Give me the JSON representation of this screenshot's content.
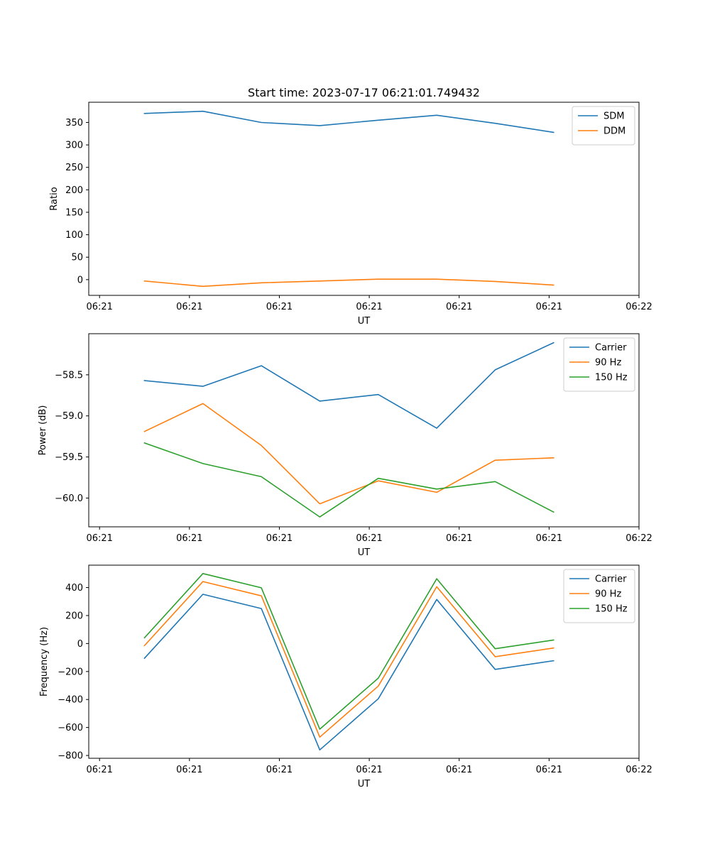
{
  "figure_title": "Start time: 2023-07-17 06:21:01.749432",
  "colors": {
    "blue": "#1f77b4",
    "orange": "#ff7f0e",
    "green": "#2ca02c"
  },
  "chart_data": [
    {
      "type": "line",
      "title": "Start time: 2023-07-17 06:21:01.749432",
      "xlabel": "UT",
      "ylabel": "Ratio",
      "x_tick_labels": [
        "06:21",
        "06:21",
        "06:21",
        "06:21",
        "06:21",
        "06:21",
        "06:22"
      ],
      "x_tick_values": [
        0,
        1,
        2,
        3,
        4,
        5,
        6
      ],
      "xlim": [
        -0.12,
        6.0
      ],
      "x": [
        0.5,
        1.15,
        1.8,
        2.45,
        3.1,
        3.75,
        4.4,
        5.05
      ],
      "ylim": [
        -35,
        395
      ],
      "y_ticks": [
        0,
        50,
        100,
        150,
        200,
        250,
        300,
        350
      ],
      "legend_position": "top-right",
      "series": [
        {
          "name": "SDM",
          "color": "#1f77b4",
          "values": [
            370,
            375,
            350,
            343,
            355,
            366,
            348,
            328
          ]
        },
        {
          "name": "DDM",
          "color": "#ff7f0e",
          "values": [
            -3,
            -15,
            -7,
            -3,
            1,
            1,
            -4,
            -12
          ]
        }
      ]
    },
    {
      "type": "line",
      "title": "",
      "xlabel": "UT",
      "ylabel": "Power (dB)",
      "x_tick_labels": [
        "06:21",
        "06:21",
        "06:21",
        "06:21",
        "06:21",
        "06:21",
        "06:22"
      ],
      "x_tick_values": [
        0,
        1,
        2,
        3,
        4,
        5,
        6
      ],
      "xlim": [
        -0.12,
        6.0
      ],
      "x": [
        0.5,
        1.15,
        1.8,
        2.45,
        3.1,
        3.75,
        4.4,
        5.05
      ],
      "ylim": [
        -60.35,
        -58.0
      ],
      "y_ticks": [
        -60.0,
        -59.5,
        -59.0,
        -58.5
      ],
      "y_tick_labels": [
        "−60.0",
        "−59.5",
        "−59.0",
        "−58.5"
      ],
      "legend_position": "top-right",
      "series": [
        {
          "name": "Carrier",
          "color": "#1f77b4",
          "values": [
            -58.57,
            -58.64,
            -58.39,
            -58.82,
            -58.74,
            -59.15,
            -58.44,
            -58.11
          ]
        },
        {
          "name": "90 Hz",
          "color": "#ff7f0e",
          "values": [
            -59.19,
            -58.85,
            -59.36,
            -60.07,
            -59.79,
            -59.93,
            -59.54,
            -59.51
          ]
        },
        {
          "name": "150 Hz",
          "color": "#2ca02c",
          "values": [
            -59.33,
            -59.58,
            -59.74,
            -60.23,
            -59.76,
            -59.89,
            -59.8,
            -60.17
          ]
        }
      ]
    },
    {
      "type": "line",
      "title": "",
      "xlabel": "UT",
      "ylabel": "Frequency (Hz)",
      "x_tick_labels": [
        "06:21",
        "06:21",
        "06:21",
        "06:21",
        "06:21",
        "06:21",
        "06:22"
      ],
      "x_tick_values": [
        0,
        1,
        2,
        3,
        4,
        5,
        6
      ],
      "xlim": [
        -0.12,
        6.0
      ],
      "x": [
        0.5,
        1.15,
        1.8,
        2.45,
        3.1,
        3.75,
        4.4,
        5.05
      ],
      "ylim": [
        -820,
        560
      ],
      "y_ticks": [
        -800,
        -600,
        -400,
        -200,
        0,
        200,
        400
      ],
      "y_tick_labels": [
        "−800",
        "−600",
        "−400",
        "−200",
        "0",
        "200",
        "400"
      ],
      "legend_position": "top-right",
      "series": [
        {
          "name": "Carrier",
          "color": "#1f77b4",
          "values": [
            -105,
            352,
            250,
            -760,
            -395,
            315,
            -185,
            -123
          ]
        },
        {
          "name": "90 Hz",
          "color": "#ff7f0e",
          "values": [
            -15,
            443,
            341,
            -669,
            -304,
            406,
            -94,
            -32
          ]
        },
        {
          "name": "150 Hz",
          "color": "#2ca02c",
          "values": [
            41,
            500,
            398,
            -612,
            -247,
            463,
            -37,
            25
          ]
        }
      ]
    }
  ]
}
